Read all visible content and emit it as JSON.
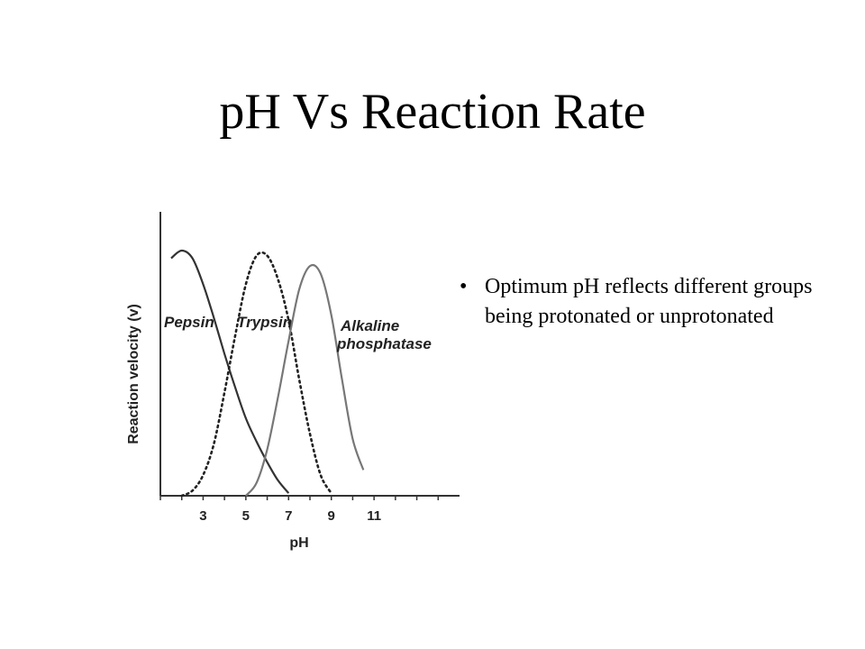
{
  "slide": {
    "title": "pH Vs Reaction Rate",
    "bullets": [
      {
        "marker": "•",
        "text": "Optimum pH reflects different groups being protonated or unprotonated"
      }
    ]
  },
  "chart_data": {
    "type": "line",
    "xlabel": "pH",
    "ylabel": "Reaction velocity (v)",
    "xlim": [
      1,
      15
    ],
    "ylim": [
      0,
      1.1
    ],
    "x_ticks": [
      3,
      5,
      7,
      9,
      11
    ],
    "grid": false,
    "legend": "labels placed above each curve",
    "series": [
      {
        "name": "Pepsin",
        "style": "solid",
        "color": "#333333",
        "points": [
          [
            1.5,
            0.92
          ],
          [
            2,
            0.95
          ],
          [
            2.5,
            0.92
          ],
          [
            3,
            0.82
          ],
          [
            3.5,
            0.69
          ],
          [
            4,
            0.55
          ],
          [
            4.5,
            0.42
          ],
          [
            5,
            0.3
          ],
          [
            5.5,
            0.21
          ],
          [
            6,
            0.13
          ],
          [
            6.5,
            0.06
          ],
          [
            7,
            0.01
          ]
        ]
      },
      {
        "name": "Trypsin",
        "style": "dotted",
        "color": "#222222",
        "points": [
          [
            2,
            0
          ],
          [
            2.5,
            0.02
          ],
          [
            3,
            0.08
          ],
          [
            3.5,
            0.2
          ],
          [
            4,
            0.4
          ],
          [
            4.5,
            0.62
          ],
          [
            5,
            0.82
          ],
          [
            5.5,
            0.93
          ],
          [
            6,
            0.93
          ],
          [
            6.5,
            0.84
          ],
          [
            7,
            0.68
          ],
          [
            7.5,
            0.45
          ],
          [
            8,
            0.24
          ],
          [
            8.5,
            0.08
          ],
          [
            9,
            0.01
          ]
        ]
      },
      {
        "name": "Alkaline phosphatase",
        "style": "solid",
        "color": "#777777",
        "points": [
          [
            5,
            0
          ],
          [
            5.5,
            0.05
          ],
          [
            6,
            0.18
          ],
          [
            6.5,
            0.38
          ],
          [
            7,
            0.6
          ],
          [
            7.5,
            0.8
          ],
          [
            8,
            0.89
          ],
          [
            8.5,
            0.86
          ],
          [
            9,
            0.7
          ],
          [
            9.5,
            0.45
          ],
          [
            10,
            0.22
          ],
          [
            10.5,
            0.1
          ]
        ]
      }
    ]
  }
}
